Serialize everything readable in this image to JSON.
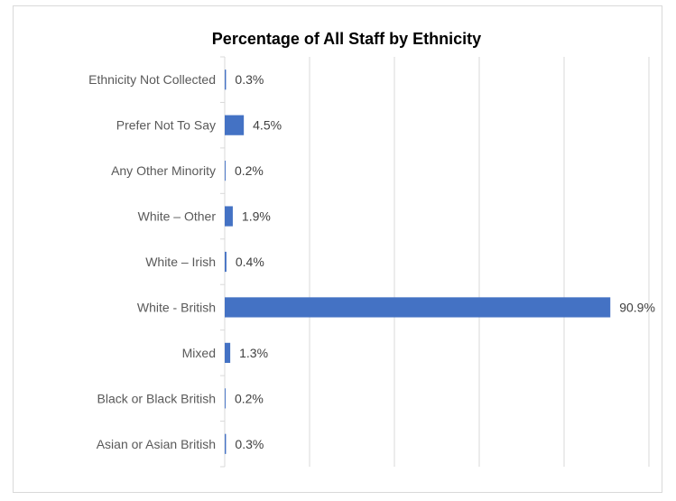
{
  "chart_data": {
    "type": "bar",
    "orientation": "horizontal",
    "title": "Percentage of All Staff by Ethnicity",
    "categories": [
      "Ethnicity Not Collected",
      "Prefer Not To Say",
      "Any Other Minority",
      "White – Other",
      "White – Irish",
      "White - British",
      "Mixed",
      "Black or Black British",
      "Asian or Asian British"
    ],
    "values": [
      0.3,
      4.5,
      0.2,
      1.9,
      0.4,
      90.9,
      1.3,
      0.2,
      0.3
    ],
    "data_labels": [
      "0.3%",
      "4.5%",
      "0.2%",
      "1.9%",
      "0.4%",
      "90.9%",
      "1.3%",
      "0.2%",
      "0.3%"
    ],
    "xlim": [
      0,
      100
    ],
    "grid": true,
    "legend": "none",
    "bar_color": "#4472c4"
  }
}
